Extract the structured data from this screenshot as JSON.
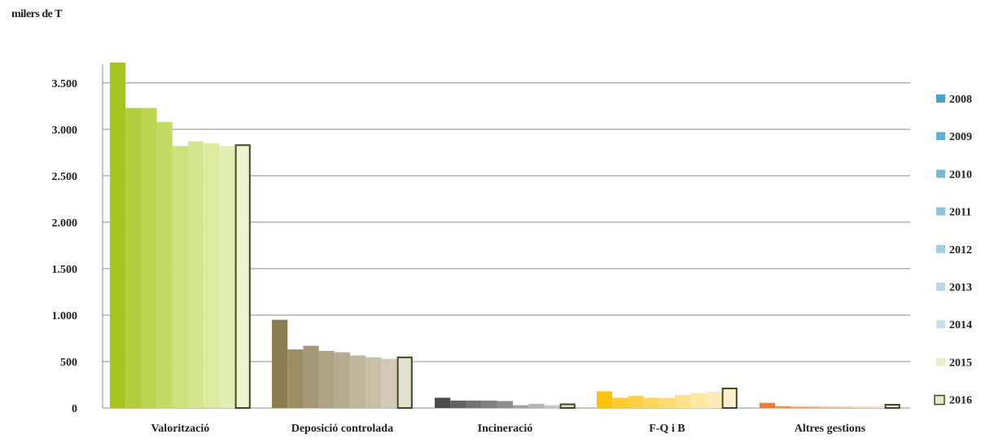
{
  "chart_data": {
    "type": "bar",
    "unit_label": "milers de T",
    "categories": [
      "Valorització",
      "Deposició controlada",
      "Incineració",
      "F-Q i B",
      "Altres gestions"
    ],
    "series": [
      {
        "name": "2008",
        "values": [
          3720,
          950,
          110,
          180,
          55
        ]
      },
      {
        "name": "2009",
        "values": [
          3230,
          630,
          80,
          110,
          20
        ]
      },
      {
        "name": "2010",
        "values": [
          3230,
          670,
          80,
          130,
          15
        ]
      },
      {
        "name": "2011",
        "values": [
          3080,
          615,
          80,
          110,
          15
        ]
      },
      {
        "name": "2012",
        "values": [
          2820,
          600,
          75,
          110,
          15
        ]
      },
      {
        "name": "2013",
        "values": [
          2870,
          565,
          30,
          140,
          15
        ]
      },
      {
        "name": "2014",
        "values": [
          2850,
          545,
          45,
          160,
          15
        ]
      },
      {
        "name": "2015",
        "values": [
          2820,
          530,
          30,
          175,
          20
        ]
      },
      {
        "name": "2016",
        "values": [
          2830,
          545,
          40,
          210,
          35
        ]
      }
    ],
    "y_ticks": [
      0,
      500,
      1000,
      1500,
      2000,
      2500,
      3000,
      3500
    ],
    "y_tick_labels": [
      "0",
      "500",
      "1.000",
      "1.500",
      "2.000",
      "2.500",
      "3.000",
      "3.500"
    ],
    "ylim": [
      0,
      3700
    ],
    "grid": true,
    "legend_position": "right",
    "colors": {
      "Valorització": [
        "#a6c51f",
        "#b2ce3c",
        "#bcd452",
        "#c4da66",
        "#cde17c",
        "#d4e58f",
        "#dcea9f",
        "#e3eeb4",
        "#edf3d0"
      ],
      "Deposició controlada": [
        "#8b7d4f",
        "#9a8e63",
        "#a49877",
        "#aea484",
        "#b6ad90",
        "#bfb79d",
        "#c7c0a8",
        "#d0cab6",
        "#e3dfd1"
      ],
      "Incineració": [
        "#4a4a4a",
        "#626262",
        "#727272",
        "#808080",
        "#8e8e8e",
        "#a2a2a2",
        "#b4b4b4",
        "#c8c8c8",
        "#dcdcdc"
      ],
      "F-Q i B": [
        "#ffc20e",
        "#ffc930",
        "#ffcf46",
        "#ffd55c",
        "#ffdb73",
        "#ffe18a",
        "#ffe6a1",
        "#ffebb8",
        "#fff1cf"
      ],
      "Altres gestions": [
        "#ef7e30",
        "#f18f4c",
        "#f39f66",
        "#f5ad7c",
        "#f6bb94",
        "#f8c8aa",
        "#f9d4bd",
        "#fbe0cf",
        "#fdebe1"
      ],
      "legend": [
        "#4aa3c6",
        "#62b0cf",
        "#78bad6",
        "#8cc4db",
        "#a2cfe2",
        "#b6d9e8",
        "#c8e1ed",
        "#e7f0cc",
        "#e3eacb"
      ],
      "outline_2016": "#3d4a1e"
    }
  }
}
